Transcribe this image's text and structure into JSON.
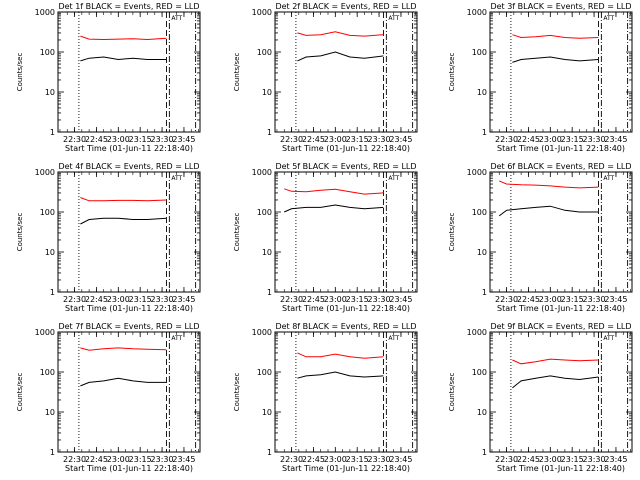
{
  "figure": {
    "xlabel": "Start Time (01-Jun-11 22:18:40)",
    "ylabel": "Counts/sec",
    "time_ticks": [
      "22:30",
      "22:45",
      "23:00",
      "23:15",
      "23:30",
      "23:45"
    ],
    "y_ticks": [
      "1",
      "10",
      "100",
      "1000"
    ],
    "corner_marker": "ATT"
  },
  "colors": {
    "events": "#000000",
    "lld": "#ff0000",
    "axes": "#000000"
  },
  "chart_data": [
    {
      "type": "line",
      "title": "Det 1f BLACK = Events, RED = LLD",
      "xlim": [
        "22:18:40",
        "23:56:00"
      ],
      "ylim": [
        1,
        1000
      ],
      "yscale": "log",
      "xlabel": "Start Time (01-Jun-11 22:18:40)",
      "ylabel": "Counts/sec",
      "x": [
        "22:34",
        "22:40",
        "22:50",
        "23:00",
        "23:10",
        "23:20",
        "23:33"
      ],
      "series": [
        {
          "name": "Events",
          "values": [
            60,
            70,
            75,
            65,
            70,
            65,
            65
          ]
        },
        {
          "name": "LLD",
          "values": [
            250,
            210,
            205,
            210,
            215,
            205,
            220
          ]
        }
      ],
      "vlines": [
        {
          "x": "22:33",
          "style": "dotted"
        },
        {
          "x": "23:33",
          "style": "dashed"
        },
        {
          "x": "23:35",
          "style": "dash-dot"
        },
        {
          "x": "23:53",
          "style": "dash-dot"
        }
      ]
    },
    {
      "type": "line",
      "title": "Det 2f BLACK = Events, RED = LLD",
      "xlim": [
        "22:18:40",
        "23:56:00"
      ],
      "ylim": [
        1,
        1000
      ],
      "yscale": "log",
      "xlabel": "Start Time (01-Jun-11 22:18:40)",
      "ylabel": "Counts/sec",
      "x": [
        "22:34",
        "22:40",
        "22:50",
        "23:00",
        "23:10",
        "23:20",
        "23:33"
      ],
      "series": [
        {
          "name": "Events",
          "values": [
            60,
            75,
            80,
            100,
            75,
            70,
            80
          ]
        },
        {
          "name": "LLD",
          "values": [
            300,
            260,
            270,
            320,
            260,
            250,
            270
          ]
        }
      ],
      "vlines": [
        {
          "x": "22:33",
          "style": "dotted"
        },
        {
          "x": "23:33",
          "style": "dashed"
        },
        {
          "x": "23:35",
          "style": "dash-dot"
        },
        {
          "x": "23:53",
          "style": "dash-dot"
        }
      ]
    },
    {
      "type": "line",
      "title": "Det 3f BLACK = Events, RED = LLD",
      "xlim": [
        "22:18:40",
        "23:56:00"
      ],
      "ylim": [
        1,
        1000
      ],
      "yscale": "log",
      "xlabel": "Start Time (01-Jun-11 22:18:40)",
      "ylabel": "Counts/sec",
      "x": [
        "22:34",
        "22:40",
        "22:50",
        "23:00",
        "23:10",
        "23:20",
        "23:33"
      ],
      "series": [
        {
          "name": "Events",
          "values": [
            55,
            65,
            70,
            75,
            65,
            60,
            65
          ]
        },
        {
          "name": "LLD",
          "values": [
            270,
            230,
            240,
            260,
            230,
            220,
            230
          ]
        }
      ],
      "vlines": [
        {
          "x": "22:33",
          "style": "dotted"
        },
        {
          "x": "23:33",
          "style": "dashed"
        },
        {
          "x": "23:35",
          "style": "dash-dot"
        },
        {
          "x": "23:53",
          "style": "dash-dot"
        }
      ]
    },
    {
      "type": "line",
      "title": "Det 4f BLACK = Events, RED = LLD",
      "xlim": [
        "22:18:40",
        "23:56:00"
      ],
      "ylim": [
        1,
        1000
      ],
      "yscale": "log",
      "xlabel": "Start Time (01-Jun-11 22:18:40)",
      "ylabel": "Counts/sec",
      "x": [
        "22:34",
        "22:40",
        "22:50",
        "23:00",
        "23:10",
        "23:20",
        "23:33"
      ],
      "series": [
        {
          "name": "Events",
          "values": [
            50,
            65,
            70,
            70,
            65,
            65,
            70
          ]
        },
        {
          "name": "LLD",
          "values": [
            230,
            190,
            190,
            195,
            195,
            190,
            200
          ]
        }
      ],
      "vlines": [
        {
          "x": "22:33",
          "style": "dotted"
        },
        {
          "x": "23:33",
          "style": "dashed"
        },
        {
          "x": "23:35",
          "style": "dash-dot"
        },
        {
          "x": "23:53",
          "style": "dash-dot"
        }
      ]
    },
    {
      "type": "line",
      "title": "Det 5f BLACK = Events, RED = LLD",
      "xlim": [
        "22:18:40",
        "23:56:00"
      ],
      "ylim": [
        1,
        1000
      ],
      "yscale": "log",
      "xlabel": "Start Time (01-Jun-11 22:18:40)",
      "ylabel": "Counts/sec",
      "x": [
        "22:25",
        "22:30",
        "22:40",
        "22:50",
        "23:00",
        "23:10",
        "23:20",
        "23:33"
      ],
      "series": [
        {
          "name": "Events",
          "values": [
            100,
            120,
            130,
            130,
            150,
            130,
            120,
            130
          ]
        },
        {
          "name": "LLD",
          "values": [
            380,
            330,
            320,
            350,
            370,
            320,
            280,
            300
          ]
        }
      ],
      "vlines": [
        {
          "x": "22:33",
          "style": "dotted"
        },
        {
          "x": "23:33",
          "style": "dashed"
        },
        {
          "x": "23:35",
          "style": "dash-dot"
        },
        {
          "x": "23:53",
          "style": "dash-dot"
        }
      ]
    },
    {
      "type": "line",
      "title": "Det 6f BLACK = Events, RED = LLD",
      "xlim": [
        "22:18:40",
        "23:56:00"
      ],
      "ylim": [
        1,
        1000
      ],
      "yscale": "log",
      "xlabel": "Start Time (01-Jun-11 22:18:40)",
      "ylabel": "Counts/sec",
      "x": [
        "22:25",
        "22:30",
        "22:40",
        "22:50",
        "23:00",
        "23:10",
        "23:20",
        "23:33"
      ],
      "series": [
        {
          "name": "Events",
          "values": [
            80,
            110,
            120,
            130,
            140,
            110,
            100,
            100
          ]
        },
        {
          "name": "LLD",
          "values": [
            600,
            500,
            480,
            470,
            450,
            420,
            400,
            420
          ]
        }
      ],
      "vlines": [
        {
          "x": "22:33",
          "style": "dotted"
        },
        {
          "x": "23:33",
          "style": "dashed"
        },
        {
          "x": "23:35",
          "style": "dash-dot"
        },
        {
          "x": "23:53",
          "style": "dash-dot"
        }
      ]
    },
    {
      "type": "line",
      "title": "Det 7f BLACK = Events, RED = LLD",
      "xlim": [
        "22:18:40",
        "23:56:00"
      ],
      "ylim": [
        1,
        1000
      ],
      "yscale": "log",
      "xlabel": "Start Time (01-Jun-11 22:18:40)",
      "ylabel": "Counts/sec",
      "x": [
        "22:34",
        "22:40",
        "22:50",
        "23:00",
        "23:10",
        "23:20",
        "23:33"
      ],
      "series": [
        {
          "name": "Events",
          "values": [
            45,
            55,
            60,
            70,
            60,
            55,
            55
          ]
        },
        {
          "name": "LLD",
          "values": [
            400,
            350,
            380,
            400,
            380,
            370,
            360
          ]
        }
      ],
      "vlines": [
        {
          "x": "22:33",
          "style": "dotted"
        },
        {
          "x": "23:33",
          "style": "dashed"
        },
        {
          "x": "23:35",
          "style": "dash-dot"
        },
        {
          "x": "23:53",
          "style": "dash-dot"
        }
      ]
    },
    {
      "type": "line",
      "title": "Det 8f BLACK = Events, RED = LLD",
      "xlim": [
        "22:18:40",
        "23:56:00"
      ],
      "ylim": [
        1,
        1000
      ],
      "yscale": "log",
      "xlabel": "Start Time (01-Jun-11 22:18:40)",
      "ylabel": "Counts/sec",
      "x": [
        "22:34",
        "22:40",
        "22:50",
        "23:00",
        "23:10",
        "23:20",
        "23:33"
      ],
      "series": [
        {
          "name": "Events",
          "values": [
            70,
            80,
            85,
            100,
            80,
            75,
            80
          ]
        },
        {
          "name": "LLD",
          "values": [
            300,
            240,
            240,
            280,
            240,
            220,
            240
          ]
        }
      ],
      "vlines": [
        {
          "x": "22:33",
          "style": "dotted"
        },
        {
          "x": "23:33",
          "style": "dashed"
        },
        {
          "x": "23:35",
          "style": "dash-dot"
        },
        {
          "x": "23:53",
          "style": "dash-dot"
        }
      ]
    },
    {
      "type": "line",
      "title": "Det 9f BLACK = Events, RED = LLD",
      "xlim": [
        "22:18:40",
        "23:56:00"
      ],
      "ylim": [
        1,
        1000
      ],
      "yscale": "log",
      "xlabel": "Start Time (01-Jun-11 22:18:40)",
      "ylabel": "Counts/sec",
      "x": [
        "22:34",
        "22:40",
        "22:50",
        "23:00",
        "23:10",
        "23:20",
        "23:33"
      ],
      "series": [
        {
          "name": "Events",
          "values": [
            40,
            60,
            70,
            80,
            70,
            65,
            75
          ]
        },
        {
          "name": "LLD",
          "values": [
            200,
            160,
            180,
            210,
            200,
            190,
            200
          ]
        }
      ],
      "vlines": [
        {
          "x": "22:33",
          "style": "dotted"
        },
        {
          "x": "23:33",
          "style": "dashed"
        },
        {
          "x": "23:35",
          "style": "dash-dot"
        },
        {
          "x": "23:53",
          "style": "dash-dot"
        }
      ]
    }
  ]
}
